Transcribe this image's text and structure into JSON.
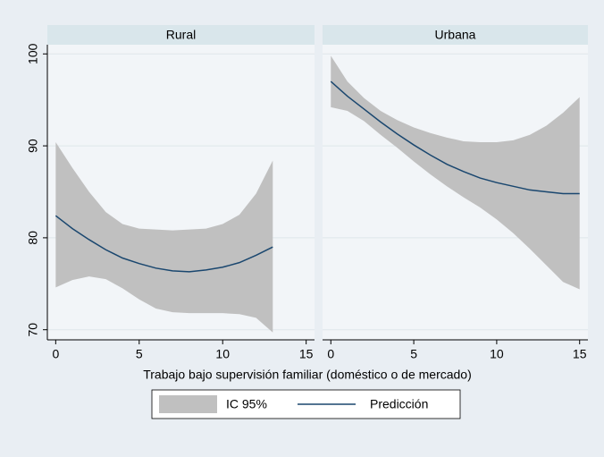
{
  "chart_data": {
    "type": "line",
    "xlabel": "Trabajo bajo supervisión familiar (doméstico o de mercado)",
    "ylim": [
      68.9,
      101
    ],
    "yticks": [
      70,
      80,
      90,
      100
    ],
    "xlim": [
      -0.5,
      15.5
    ],
    "xticks": [
      0,
      5,
      10,
      15
    ],
    "grid": true,
    "series": [
      {
        "name": "IC 95%",
        "color": "#c0c0c0"
      },
      {
        "name": "Predicción",
        "color": "#1a476f"
      }
    ],
    "panels": [
      {
        "title": "Rural",
        "x": [
          0,
          1,
          2,
          3,
          4,
          5,
          6,
          7,
          8,
          9,
          10,
          11,
          12,
          13
        ],
        "values": [
          82.4,
          81.0,
          79.8,
          78.7,
          77.8,
          77.2,
          76.7,
          76.4,
          76.3,
          76.5,
          76.8,
          77.3,
          78.1,
          79.0
        ],
        "ci_upper": [
          90.4,
          87.6,
          85.0,
          82.8,
          81.5,
          81.0,
          80.9,
          80.8,
          80.9,
          81.0,
          81.5,
          82.5,
          84.8,
          88.4
        ],
        "ci_lower": [
          74.6,
          75.4,
          75.8,
          75.5,
          74.5,
          73.3,
          72.3,
          71.9,
          71.8,
          71.8,
          71.8,
          71.7,
          71.3,
          69.7
        ]
      },
      {
        "title": "Urbana",
        "x": [
          0,
          1,
          2,
          3,
          4,
          5,
          6,
          7,
          8,
          9,
          10,
          11,
          12,
          13,
          14,
          15
        ],
        "values": [
          97.0,
          95.4,
          94.0,
          92.6,
          91.3,
          90.1,
          89.0,
          88.0,
          87.2,
          86.5,
          86.0,
          85.6,
          85.2,
          85.0,
          84.8,
          84.8
        ],
        "ci_upper": [
          99.8,
          97.0,
          95.2,
          93.8,
          92.8,
          92.0,
          91.4,
          90.9,
          90.5,
          90.4,
          90.4,
          90.6,
          91.2,
          92.2,
          93.6,
          95.3
        ],
        "ci_lower": [
          94.2,
          93.8,
          92.7,
          91.2,
          89.8,
          88.3,
          86.9,
          85.6,
          84.4,
          83.3,
          82.0,
          80.5,
          78.8,
          77.0,
          75.2,
          74.4
        ]
      }
    ]
  }
}
